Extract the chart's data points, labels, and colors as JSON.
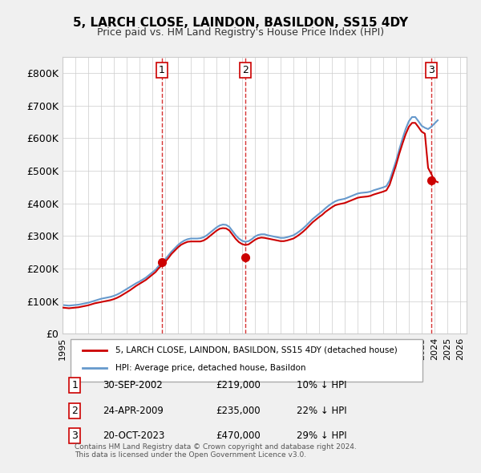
{
  "title": "5, LARCH CLOSE, LAINDON, BASILDON, SS15 4DY",
  "subtitle": "Price paid vs. HM Land Registry's House Price Index (HPI)",
  "background_color": "#f0f0f0",
  "plot_bg_color": "#ffffff",
  "ylim": [
    0,
    850000
  ],
  "yticks": [
    0,
    100000,
    200000,
    300000,
    400000,
    500000,
    600000,
    700000,
    800000
  ],
  "ytick_labels": [
    "£0",
    "£100K",
    "£200K",
    "£300K",
    "£400K",
    "£500K",
    "£600K",
    "£700K",
    "£800K"
  ],
  "sale_dates": [
    "2002-09-30",
    "2009-04-24",
    "2023-10-20"
  ],
  "sale_prices": [
    219000,
    235000,
    470000
  ],
  "sale_labels": [
    "1",
    "2",
    "3"
  ],
  "sale_color": "#cc0000",
  "hpi_color": "#6699cc",
  "vline_color": "#cc0000",
  "legend_label_red": "5, LARCH CLOSE, LAINDON, BASILDON, SS15 4DY (detached house)",
  "legend_label_blue": "HPI: Average price, detached house, Basildon",
  "table_rows": [
    [
      "1",
      "30-SEP-2002",
      "£219,000",
      "10% ↓ HPI"
    ],
    [
      "2",
      "24-APR-2009",
      "£235,000",
      "22% ↓ HPI"
    ],
    [
      "3",
      "20-OCT-2023",
      "£470,000",
      "29% ↓ HPI"
    ]
  ],
  "footnote": "Contains HM Land Registry data © Crown copyright and database right 2024.\nThis data is licensed under the Open Government Licence v3.0.",
  "hpi_x": [
    1995.0,
    1995.25,
    1995.5,
    1995.75,
    1996.0,
    1996.25,
    1996.5,
    1996.75,
    1997.0,
    1997.25,
    1997.5,
    1997.75,
    1998.0,
    1998.25,
    1998.5,
    1998.75,
    1999.0,
    1999.25,
    1999.5,
    1999.75,
    2000.0,
    2000.25,
    2000.5,
    2000.75,
    2001.0,
    2001.25,
    2001.5,
    2001.75,
    2002.0,
    2002.25,
    2002.5,
    2002.75,
    2003.0,
    2003.25,
    2003.5,
    2003.75,
    2004.0,
    2004.25,
    2004.5,
    2004.75,
    2005.0,
    2005.25,
    2005.5,
    2005.75,
    2006.0,
    2006.25,
    2006.5,
    2006.75,
    2007.0,
    2007.25,
    2007.5,
    2007.75,
    2008.0,
    2008.25,
    2008.5,
    2008.75,
    2009.0,
    2009.25,
    2009.5,
    2009.75,
    2010.0,
    2010.25,
    2010.5,
    2010.75,
    2011.0,
    2011.25,
    2011.5,
    2011.75,
    2012.0,
    2012.25,
    2012.5,
    2012.75,
    2013.0,
    2013.25,
    2013.5,
    2013.75,
    2014.0,
    2014.25,
    2014.5,
    2014.75,
    2015.0,
    2015.25,
    2015.5,
    2015.75,
    2016.0,
    2016.25,
    2016.5,
    2016.75,
    2017.0,
    2017.25,
    2017.5,
    2017.75,
    2018.0,
    2018.25,
    2018.5,
    2018.75,
    2019.0,
    2019.25,
    2019.5,
    2019.75,
    2020.0,
    2020.25,
    2020.5,
    2020.75,
    2021.0,
    2021.25,
    2021.5,
    2021.75,
    2022.0,
    2022.25,
    2022.5,
    2022.75,
    2023.0,
    2023.25,
    2023.5,
    2023.75,
    2024.0,
    2024.25
  ],
  "hpi_y": [
    88000,
    87000,
    86000,
    87000,
    88000,
    89000,
    91000,
    93000,
    95000,
    98000,
    101000,
    104000,
    107000,
    109000,
    111000,
    113000,
    116000,
    120000,
    125000,
    131000,
    137000,
    143000,
    149000,
    155000,
    160000,
    166000,
    172000,
    180000,
    188000,
    196000,
    208000,
    218000,
    228000,
    240000,
    252000,
    262000,
    272000,
    280000,
    286000,
    290000,
    292000,
    292000,
    292000,
    293000,
    296000,
    302000,
    310000,
    318000,
    326000,
    332000,
    335000,
    334000,
    328000,
    315000,
    302000,
    292000,
    285000,
    282000,
    284000,
    290000,
    298000,
    303000,
    305000,
    305000,
    302000,
    300000,
    298000,
    296000,
    294000,
    294000,
    296000,
    299000,
    302000,
    308000,
    315000,
    323000,
    332000,
    342000,
    352000,
    360000,
    368000,
    376000,
    385000,
    393000,
    400000,
    406000,
    410000,
    412000,
    414000,
    418000,
    422000,
    426000,
    430000,
    432000,
    433000,
    434000,
    436000,
    440000,
    443000,
    446000,
    449000,
    453000,
    470000,
    500000,
    530000,
    565000,
    598000,
    628000,
    652000,
    665000,
    665000,
    652000,
    638000,
    632000,
    628000,
    635000,
    645000,
    655000
  ],
  "red_x": [
    1995.0,
    1995.25,
    1995.5,
    1995.75,
    1996.0,
    1996.25,
    1996.5,
    1996.75,
    1997.0,
    1997.25,
    1997.5,
    1997.75,
    1998.0,
    1998.25,
    1998.5,
    1998.75,
    1999.0,
    1999.25,
    1999.5,
    1999.75,
    2000.0,
    2000.25,
    2000.5,
    2000.75,
    2001.0,
    2001.25,
    2001.5,
    2001.75,
    2002.0,
    2002.25,
    2002.5,
    2002.75,
    2003.0,
    2003.25,
    2003.5,
    2003.75,
    2004.0,
    2004.25,
    2004.5,
    2004.75,
    2005.0,
    2005.25,
    2005.5,
    2005.75,
    2006.0,
    2006.25,
    2006.5,
    2006.75,
    2007.0,
    2007.25,
    2007.5,
    2007.75,
    2008.0,
    2008.25,
    2008.5,
    2008.75,
    2009.0,
    2009.25,
    2009.5,
    2009.75,
    2010.0,
    2010.25,
    2010.5,
    2010.75,
    2011.0,
    2011.25,
    2011.5,
    2011.75,
    2012.0,
    2012.25,
    2012.5,
    2012.75,
    2013.0,
    2013.25,
    2013.5,
    2013.75,
    2014.0,
    2014.25,
    2014.5,
    2014.75,
    2015.0,
    2015.25,
    2015.5,
    2015.75,
    2016.0,
    2016.25,
    2016.5,
    2016.75,
    2017.0,
    2017.25,
    2017.5,
    2017.75,
    2018.0,
    2018.25,
    2018.5,
    2018.75,
    2019.0,
    2019.25,
    2019.5,
    2019.75,
    2020.0,
    2020.25,
    2020.5,
    2020.75,
    2021.0,
    2021.25,
    2021.5,
    2021.75,
    2022.0,
    2022.25,
    2022.5,
    2022.75,
    2023.0,
    2023.25,
    2023.5,
    2023.75,
    2024.0,
    2024.25
  ],
  "red_y": [
    80000,
    79000,
    78000,
    79000,
    80000,
    81000,
    83000,
    85000,
    87000,
    90000,
    93000,
    95000,
    97000,
    99000,
    101000,
    103000,
    106000,
    110000,
    115000,
    121000,
    127000,
    133000,
    140000,
    147000,
    153000,
    159000,
    165000,
    173000,
    181000,
    189000,
    201000,
    210000,
    220000,
    232000,
    245000,
    255000,
    265000,
    273000,
    278000,
    282000,
    283000,
    283000,
    283000,
    283000,
    286000,
    292000,
    300000,
    308000,
    316000,
    322000,
    324000,
    323000,
    317000,
    304000,
    291000,
    281000,
    275000,
    272000,
    274000,
    281000,
    288000,
    293000,
    295000,
    294000,
    292000,
    290000,
    288000,
    286000,
    284000,
    284000,
    286000,
    289000,
    292000,
    298000,
    305000,
    313000,
    322000,
    332000,
    342000,
    350000,
    358000,
    365000,
    374000,
    381000,
    388000,
    394000,
    397000,
    399000,
    401000,
    405000,
    409000,
    413000,
    417000,
    419000,
    420000,
    421000,
    423000,
    427000,
    430000,
    433000,
    436000,
    440000,
    457000,
    487000,
    517000,
    552000,
    583000,
    612000,
    635000,
    647000,
    647000,
    634000,
    620000,
    614000,
    509000,
    490000,
    470000,
    465000
  ]
}
